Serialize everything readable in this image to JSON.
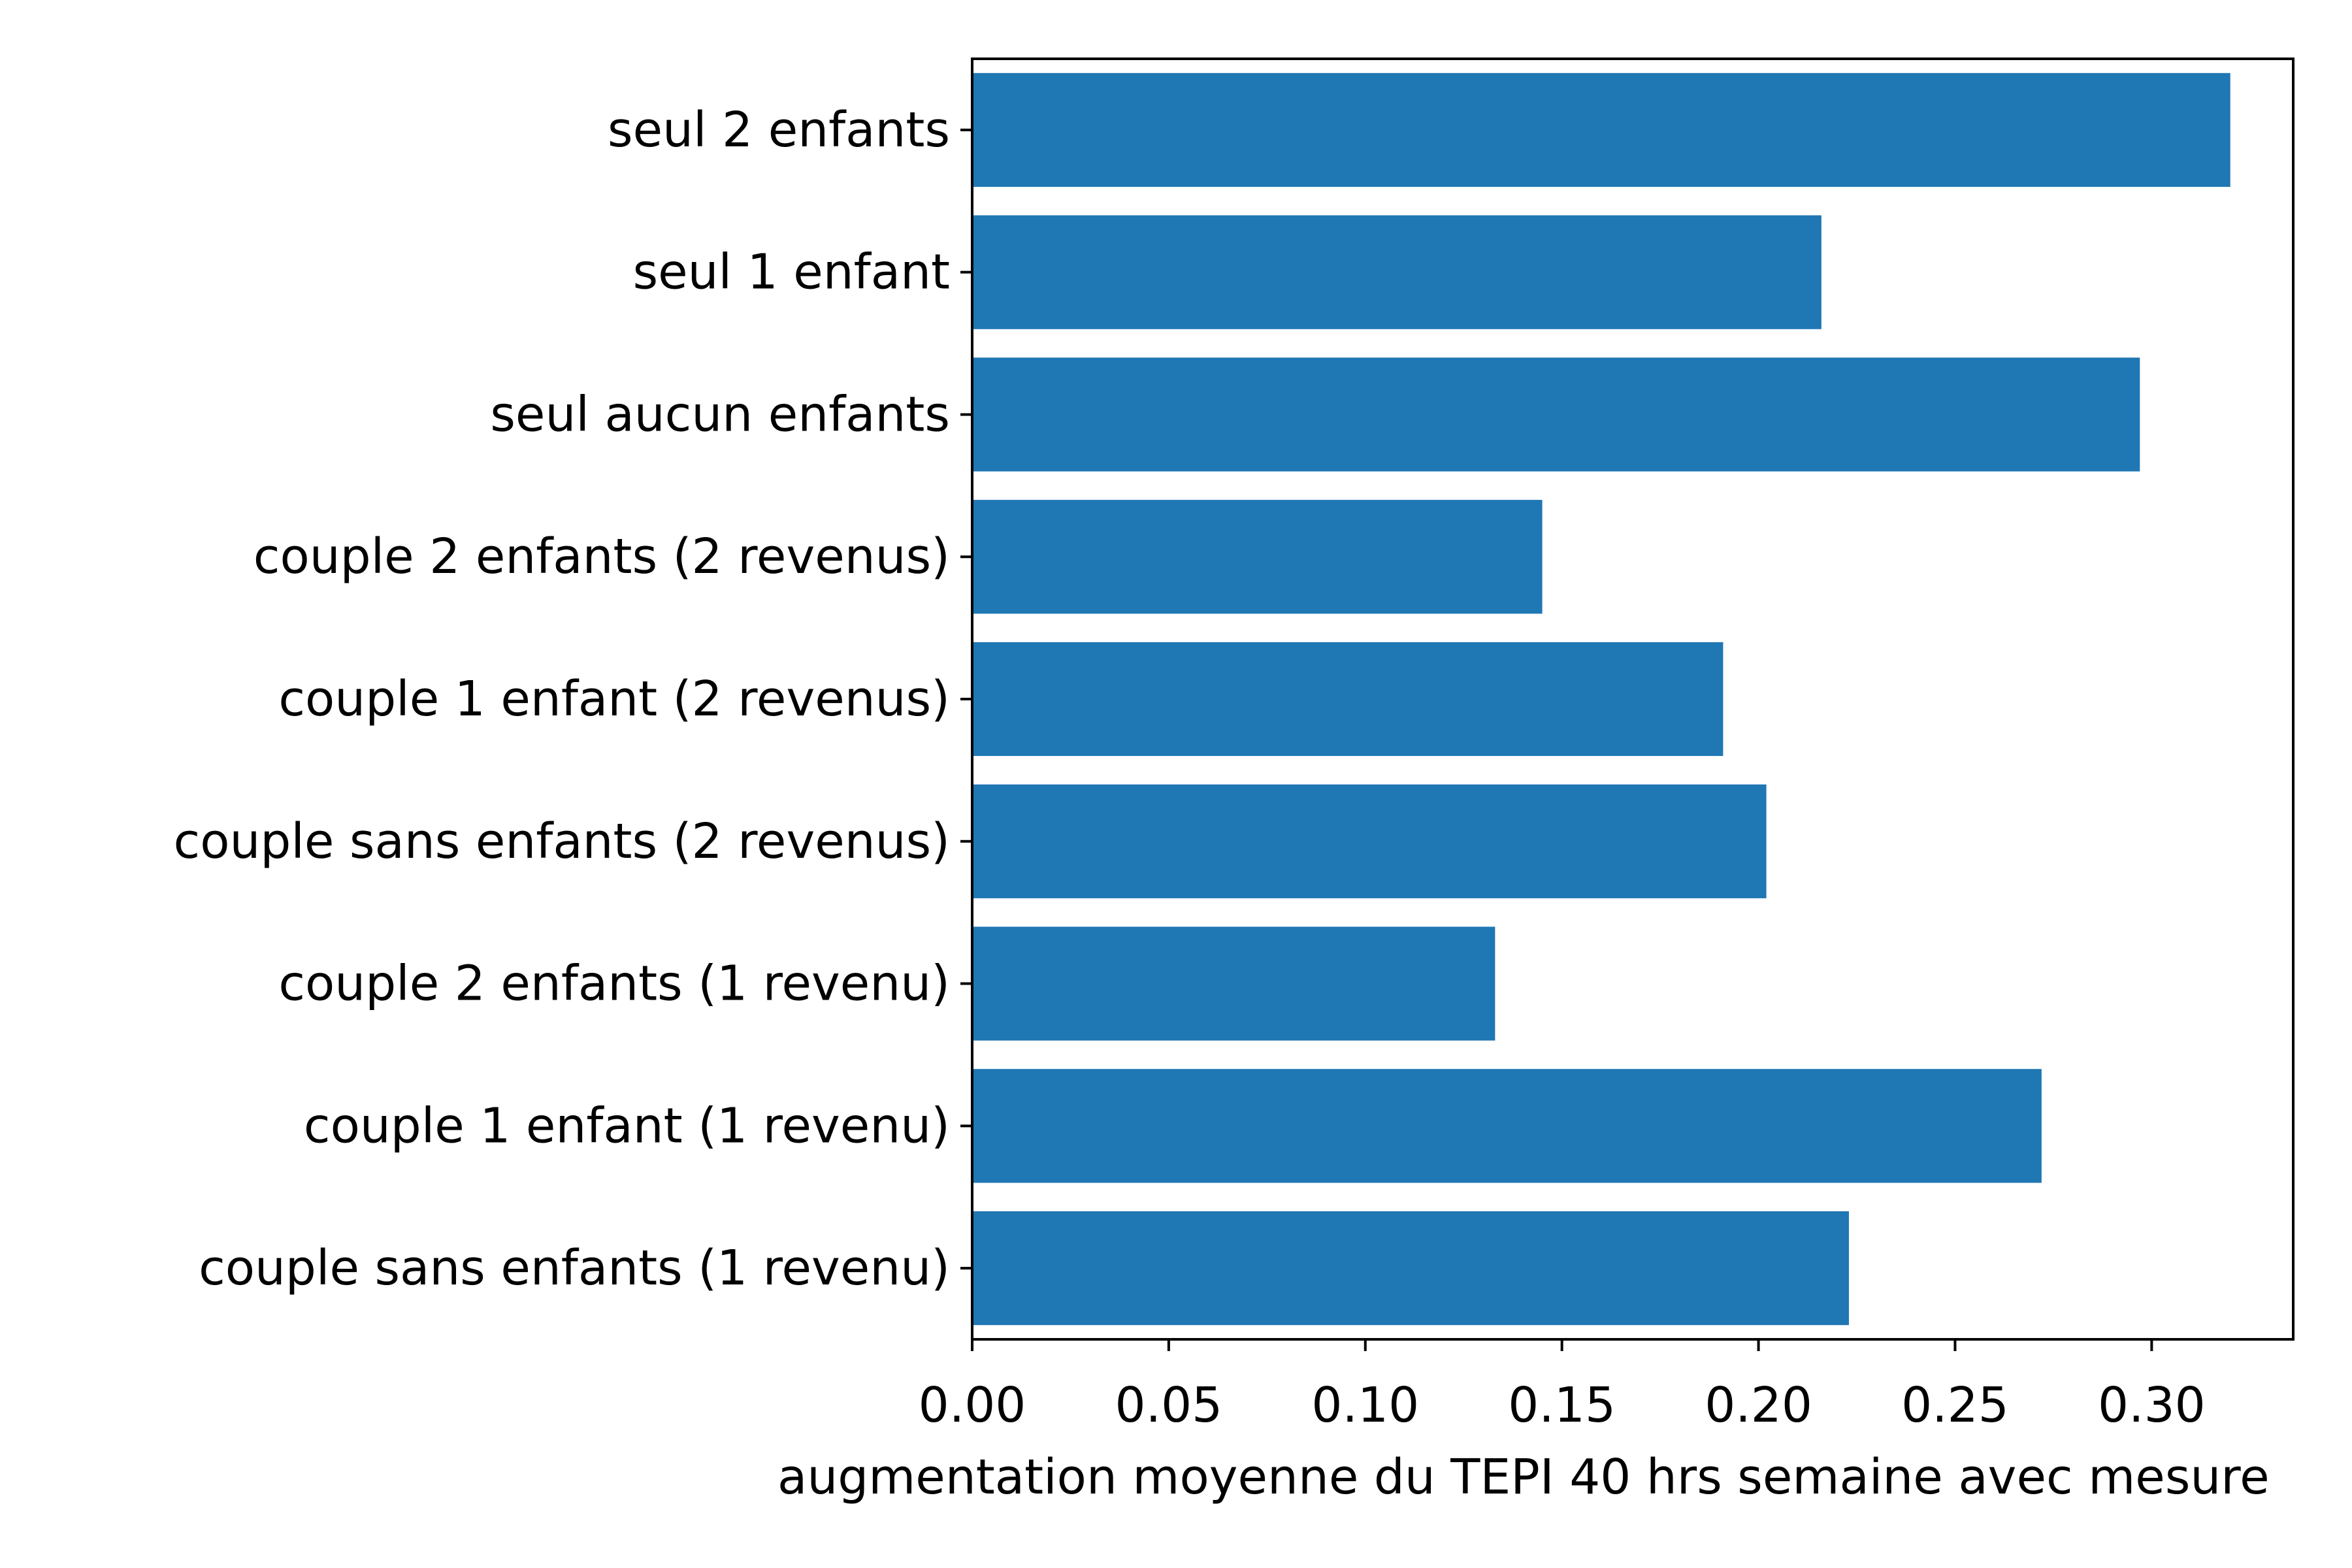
{
  "chart_data": {
    "type": "bar",
    "orientation": "horizontal",
    "categories": [
      "seul 2 enfants",
      "seul 1 enfant",
      "seul aucun enfants",
      "couple 2 enfants (2 revenus)",
      "couple 1 enfant (2 revenus)",
      "couple sans enfants (2 revenus)",
      "couple 2 enfants (1 revenu)",
      "couple 1 enfant (1 revenu)",
      "couple sans enfants (1 revenu)"
    ],
    "values": [
      0.32,
      0.216,
      0.297,
      0.145,
      0.191,
      0.202,
      0.133,
      0.272,
      0.223
    ],
    "xlabel": "augmentation moyenne du TEPI 40 hrs semaine avec mesure",
    "ylabel": "",
    "title": "",
    "xlim": [
      0,
      0.336
    ],
    "xticks": [
      "0.00",
      "0.05",
      "0.10",
      "0.15",
      "0.20",
      "0.25",
      "0.30"
    ],
    "grid": false,
    "bar_color": "#1f77b4"
  }
}
